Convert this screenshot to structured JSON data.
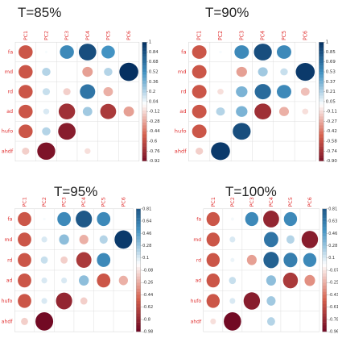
{
  "chart_data": [
    {
      "type": "heatmap",
      "title": "T=85%",
      "rows": [
        "fa",
        "md",
        "rd",
        "ad",
        "hufo",
        "ahdf"
      ],
      "cols": [
        "PC1",
        "PC2",
        "PC3",
        "PC4",
        "PC5",
        "PC6"
      ],
      "values": [
        [
          -0.55,
          0.02,
          0.55,
          0.85,
          0.5,
          0.0
        ],
        [
          -0.55,
          0.2,
          0.0,
          -0.3,
          0.2,
          1.0
        ],
        [
          -0.55,
          0.15,
          -0.15,
          0.65,
          -0.25,
          0.0
        ],
        [
          -0.55,
          0.1,
          -0.75,
          0.25,
          -0.7,
          -0.3
        ],
        [
          -0.55,
          0.2,
          -0.85,
          0.0,
          0.0,
          0.0
        ],
        [
          -0.15,
          -0.9,
          0.0,
          -0.1,
          0.0,
          0.0
        ]
      ],
      "colorbar_ticks": [
        "1",
        "0.84",
        "0.68",
        "0.52",
        "0.36",
        "0.2",
        "0.04",
        "-0.12",
        "-0.28",
        "-0.44",
        "-0.6",
        "-0.76",
        "-0.92"
      ],
      "ylim": [
        -0.92,
        1
      ]
    },
    {
      "type": "heatmap",
      "title": "T=90%",
      "rows": [
        "fa",
        "md",
        "rd",
        "ad",
        "hufo",
        "ahdf"
      ],
      "cols": [
        "PC1",
        "PC2",
        "PC3",
        "PC4",
        "PC5",
        "PC6"
      ],
      "values": [
        [
          -0.55,
          0.02,
          0.55,
          0.85,
          0.55,
          0.0
        ],
        [
          -0.55,
          0.0,
          -0.3,
          0.25,
          0.15,
          0.95
        ],
        [
          -0.55,
          -0.1,
          0.35,
          0.7,
          0.55,
          -0.2
        ],
        [
          -0.55,
          0.2,
          0.35,
          -0.75,
          -0.25,
          -0.1
        ],
        [
          -0.55,
          0.0,
          0.85,
          0.0,
          0.0,
          0.0
        ],
        [
          -0.15,
          0.95,
          0.0,
          0.0,
          0.0,
          0.0
        ]
      ],
      "colorbar_ticks": [
        "1",
        "0.85",
        "0.69",
        "0.53",
        "0.37",
        "0.21",
        "0.05",
        "-0.11",
        "-0.27",
        "-0.42",
        "-0.58",
        "-0.74",
        "-0.90"
      ],
      "ylim": [
        -0.9,
        1
      ]
    },
    {
      "type": "heatmap",
      "title": "T=95%",
      "rows": [
        "fa",
        "md",
        "rd",
        "ad",
        "hufo",
        "ahdf"
      ],
      "cols": [
        "PC1",
        "PC2",
        "PC3",
        "PC4",
        "PC5",
        "PC6"
      ],
      "values": [
        [
          -0.55,
          0.02,
          0.55,
          0.8,
          0.55,
          0.0
        ],
        [
          -0.55,
          0.1,
          0.3,
          -0.25,
          0.2,
          0.95
        ],
        [
          -0.55,
          0.15,
          -0.15,
          -0.7,
          0.55,
          0.0
        ],
        [
          -0.55,
          0.1,
          0.1,
          0.3,
          -0.55,
          -0.25
        ],
        [
          -0.55,
          0.1,
          -0.8,
          -0.15,
          0.0,
          0.0
        ],
        [
          -0.15,
          -0.95,
          0.0,
          0.0,
          0.0,
          0.0
        ]
      ],
      "colorbar_ticks": [
        "0.81",
        "0.64",
        "0.46",
        "0.28",
        "0.1",
        "-0.08",
        "-0.26",
        "-0.44",
        "-0.62",
        "-0.8",
        "-0.98"
      ],
      "ylim": [
        -0.98,
        0.81
      ]
    },
    {
      "type": "heatmap",
      "title": "T=100%",
      "rows": [
        "fa",
        "md",
        "rd",
        "ad",
        "hufo",
        "ahdf"
      ],
      "cols": [
        "PC1",
        "PC2",
        "PC3",
        "PC4",
        "PC5",
        "PC6"
      ],
      "values": [
        [
          -0.55,
          0.03,
          0.55,
          -0.8,
          0.55,
          0.0
        ],
        [
          -0.55,
          0.1,
          0.0,
          0.65,
          0.2,
          -0.85
        ],
        [
          -0.55,
          0.05,
          -0.3,
          0.75,
          0.6,
          0.55
        ],
        [
          -0.55,
          0.15,
          0.0,
          0.3,
          -0.7,
          -0.35
        ],
        [
          -0.55,
          0.1,
          -0.85,
          0.25,
          0.0,
          0.0
        ],
        [
          -0.1,
          -0.95,
          0.0,
          0.2,
          0.0,
          0.0
        ]
      ],
      "colorbar_ticks": [
        "0.81",
        "0.63",
        "0.46",
        "0.28",
        "0.1",
        "-0.07",
        "-0.25",
        "-0.43",
        "-0.61",
        "-0.78",
        "-0.96"
      ],
      "ylim": [
        -0.96,
        0.81
      ]
    }
  ]
}
